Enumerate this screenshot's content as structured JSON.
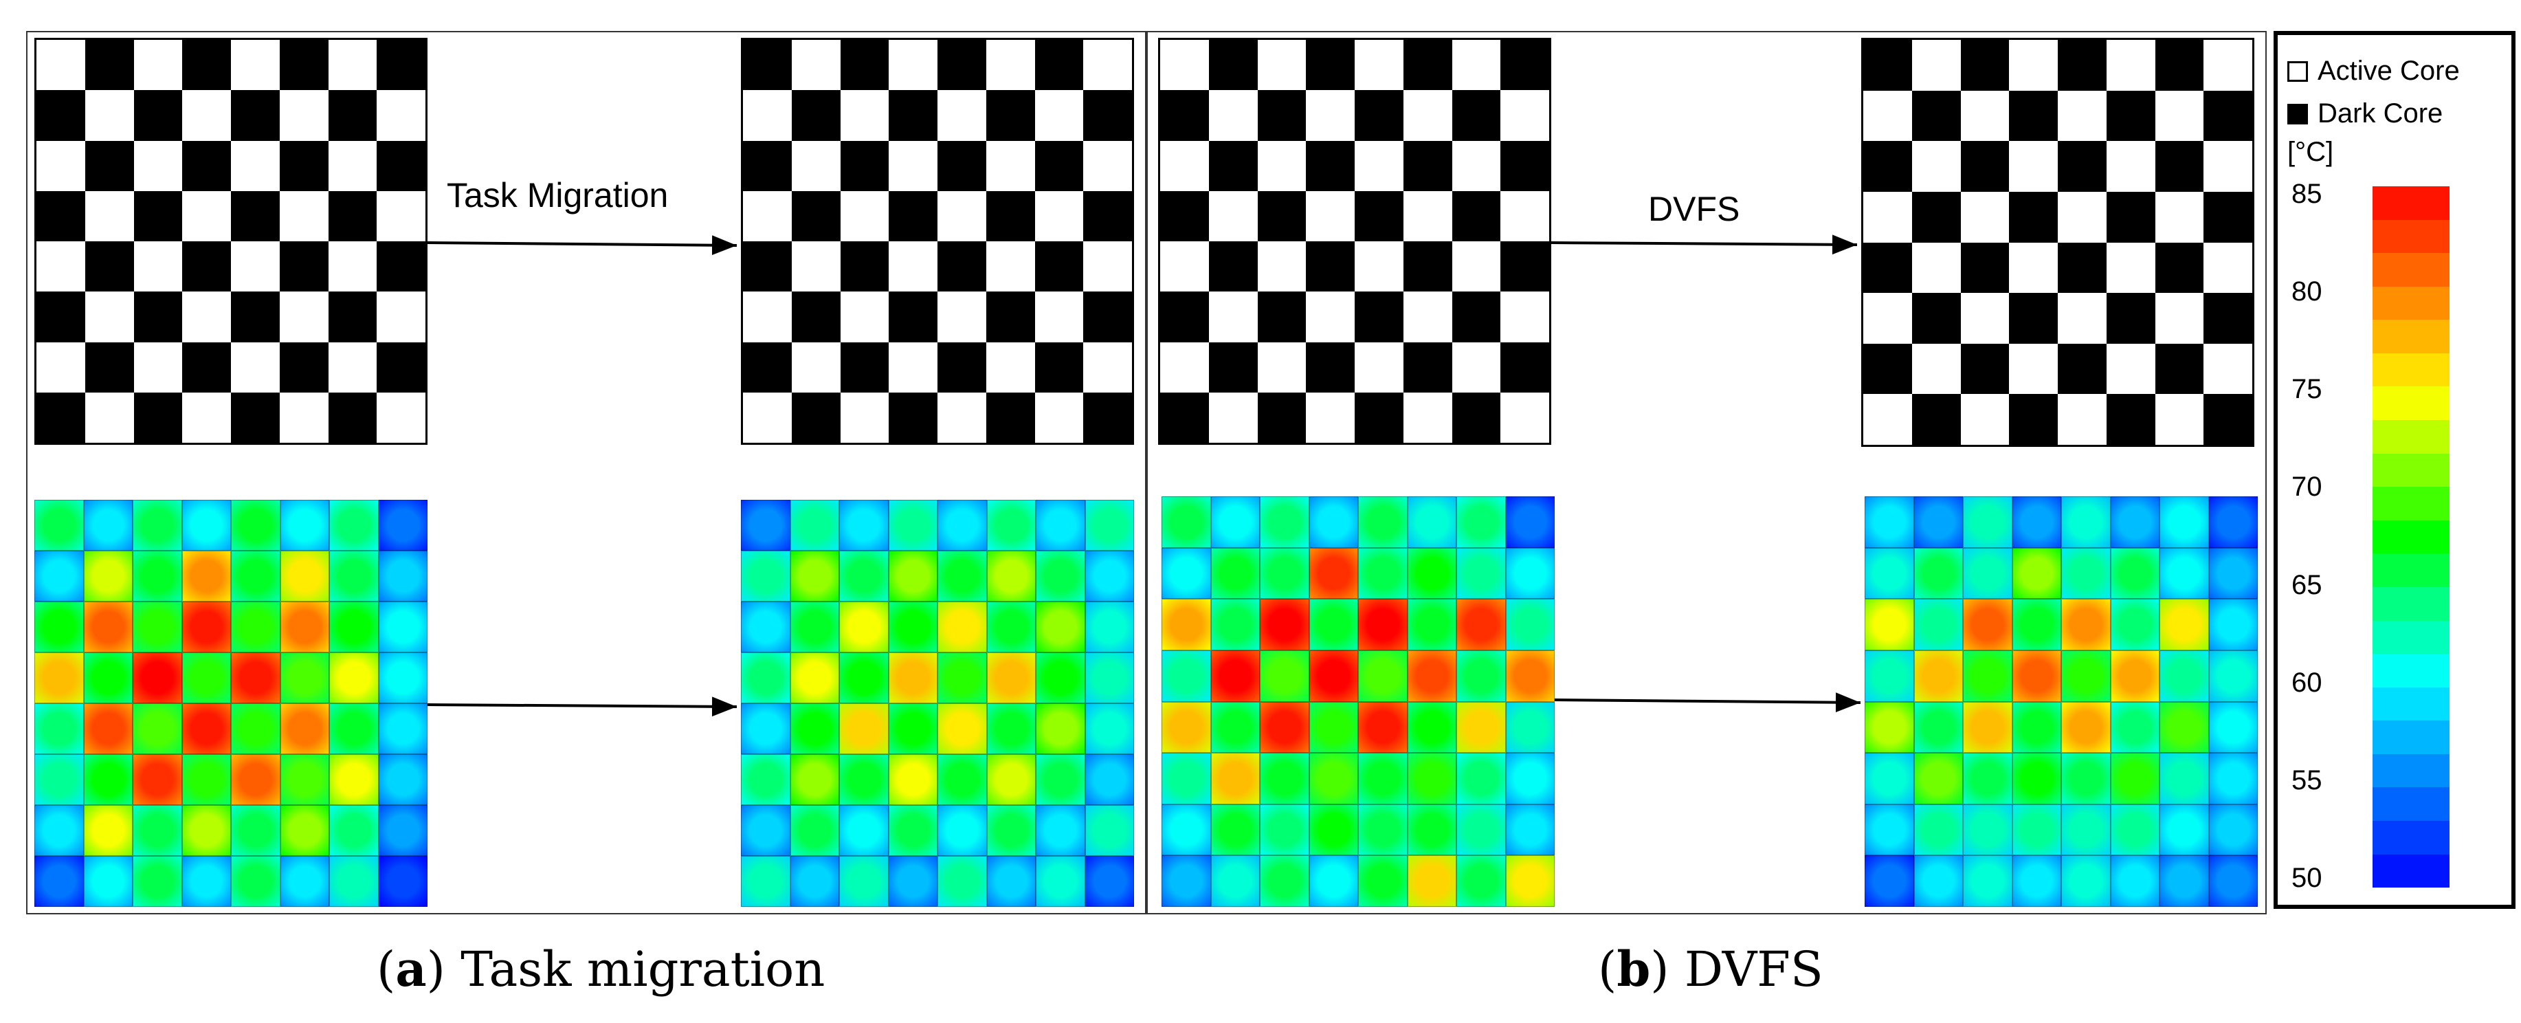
{
  "panels": {
    "a": {
      "arrow_label": "Task Migration",
      "caption_letter": "a",
      "caption_text": " Task migration"
    },
    "b": {
      "arrow_label": "DVFS",
      "caption_letter": "b",
      "caption_text": " DVFS"
    }
  },
  "legend": {
    "active_label": "Active Core",
    "dark_label": "Dark Core",
    "unit": "[°C]",
    "ticks": [
      "85",
      "80",
      "75",
      "70",
      "65",
      "60",
      "55",
      "50"
    ],
    "scale_range": [
      50,
      86
    ]
  },
  "heatmaps": {
    "a_before": [
      [
        66,
        60,
        66,
        61,
        67,
        61,
        65,
        55
      ],
      [
        60,
        74,
        67,
        80,
        67,
        76,
        66,
        59
      ],
      [
        68,
        82,
        69,
        85,
        69,
        81,
        68,
        61
      ],
      [
        78,
        68,
        86,
        69,
        85,
        70,
        75,
        61
      ],
      [
        65,
        83,
        70,
        85,
        69,
        81,
        67,
        60
      ],
      [
        64,
        68,
        84,
        69,
        82,
        70,
        75,
        59
      ],
      [
        60,
        75,
        66,
        73,
        66,
        72,
        65,
        57
      ],
      [
        55,
        61,
        66,
        60,
        66,
        60,
        63,
        53
      ]
    ],
    "a_after": [
      [
        56,
        64,
        60,
        64,
        60,
        65,
        60,
        64
      ],
      [
        64,
        72,
        66,
        72,
        67,
        73,
        66,
        60
      ],
      [
        60,
        67,
        75,
        68,
        76,
        67,
        72,
        62
      ],
      [
        65,
        75,
        68,
        78,
        69,
        78,
        68,
        63
      ],
      [
        60,
        68,
        77,
        68,
        76,
        67,
        72,
        62
      ],
      [
        65,
        72,
        67,
        75,
        67,
        74,
        66,
        59
      ],
      [
        59,
        66,
        61,
        66,
        61,
        66,
        60,
        63
      ],
      [
        63,
        59,
        63,
        58,
        64,
        59,
        62,
        55
      ]
    ],
    "b_before": [
      [
        66,
        61,
        65,
        60,
        66,
        62,
        65,
        55
      ],
      [
        61,
        67,
        66,
        84,
        66,
        68,
        64,
        61
      ],
      [
        79,
        66,
        86,
        67,
        86,
        67,
        84,
        64
      ],
      [
        64,
        86,
        70,
        86,
        70,
        83,
        66,
        81
      ],
      [
        78,
        67,
        85,
        69,
        85,
        68,
        77,
        63
      ],
      [
        64,
        78,
        67,
        70,
        67,
        69,
        65,
        61
      ],
      [
        61,
        67,
        65,
        68,
        66,
        67,
        64,
        60
      ],
      [
        58,
        62,
        66,
        61,
        67,
        77,
        66,
        76
      ]
    ],
    "b_after": [
      [
        60,
        57,
        63,
        57,
        62,
        58,
        61,
        55
      ],
      [
        62,
        66,
        63,
        72,
        64,
        66,
        61,
        58
      ],
      [
        75,
        64,
        82,
        67,
        80,
        65,
        76,
        60
      ],
      [
        63,
        78,
        69,
        82,
        69,
        79,
        64,
        62
      ],
      [
        73,
        66,
        78,
        67,
        79,
        65,
        70,
        61
      ],
      [
        62,
        71,
        66,
        68,
        66,
        69,
        63,
        60
      ],
      [
        60,
        64,
        63,
        64,
        63,
        64,
        61,
        59
      ],
      [
        55,
        60,
        62,
        60,
        62,
        60,
        58,
        56
      ]
    ]
  },
  "colors": {
    "active_core": "#ffffff",
    "dark_core": "#000000",
    "scale": [
      "#0000ff",
      "#0055ff",
      "#00aaff",
      "#00ffff",
      "#00ff88",
      "#00ff00",
      "#88ff00",
      "#ffff00",
      "#ffaa00",
      "#ff5500",
      "#ff0000"
    ]
  }
}
